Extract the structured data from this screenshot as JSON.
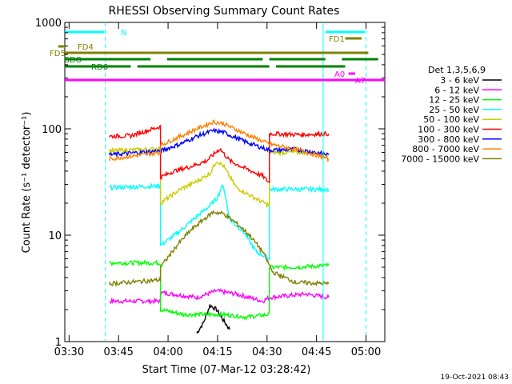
{
  "chart_data": {
    "type": "line",
    "title": "RHESSI Observing Summary Count Rates",
    "xlabel": "Start Time (07-Mar-12 03:28:42)",
    "ylabel": "Count Rate (s⁻¹ detector⁻¹)",
    "y_scale": "log",
    "ylim": [
      1,
      1000
    ],
    "xlim_minutes": [
      0,
      97
    ],
    "x_ticks": [
      {
        "label": "03:30",
        "min": 1.3
      },
      {
        "label": "03:45",
        "min": 16.3
      },
      {
        "label": "04:00",
        "min": 31.3
      },
      {
        "label": "04:15",
        "min": 46.3
      },
      {
        "label": "04:30",
        "min": 61.3
      },
      {
        "label": "04:45",
        "min": 76.3
      },
      {
        "label": "05:00",
        "min": 91.3
      }
    ],
    "y_ticks": [
      {
        "label": "1",
        "v": 1
      },
      {
        "label": "10",
        "v": 10
      },
      {
        "label": "100",
        "v": 100
      },
      {
        "label": "1000",
        "v": 1000
      }
    ],
    "legend_title": "Det 1,3,5,6,9",
    "legend_position": "right",
    "footer_date": "19-Oct-2021 08:43",
    "series": [
      {
        "name": "3 - 6 keV",
        "color": "#000000",
        "points": [
          [
            40,
            1.2
          ],
          [
            42,
            1.5
          ],
          [
            44,
            2.2
          ],
          [
            46,
            2.0
          ],
          [
            48,
            1.6
          ],
          [
            50,
            1.3
          ]
        ]
      },
      {
        "name": "6 - 12 keV",
        "color": "#ff00ff",
        "points": [
          [
            13.5,
            2.4
          ],
          [
            29,
            2.4
          ],
          [
            29,
            2.9
          ],
          [
            40,
            2.6
          ],
          [
            46,
            3.0
          ],
          [
            52,
            2.8
          ],
          [
            60,
            2.4
          ],
          [
            62,
            2.6
          ],
          [
            73,
            2.8
          ],
          [
            80,
            2.6
          ]
        ]
      },
      {
        "name": "12 - 25 keV",
        "color": "#00ff00",
        "points": [
          [
            13.5,
            5.5
          ],
          [
            29,
            5.5
          ],
          [
            29,
            2.0
          ],
          [
            36,
            1.8
          ],
          [
            42,
            1.8
          ],
          [
            48,
            1.8
          ],
          [
            55,
            1.7
          ],
          [
            62,
            1.8
          ],
          [
            62,
            5.0
          ],
          [
            70,
            5.0
          ],
          [
            80,
            5.2
          ]
        ]
      },
      {
        "name": "25 - 50 keV",
        "color": "#00ffff",
        "points": [
          [
            13.5,
            28
          ],
          [
            29,
            29
          ],
          [
            29,
            8
          ],
          [
            35,
            11
          ],
          [
            40,
            15
          ],
          [
            44,
            19
          ],
          [
            46,
            22
          ],
          [
            48,
            30
          ],
          [
            50,
            14
          ],
          [
            54,
            11
          ],
          [
            58,
            7
          ],
          [
            62,
            6
          ],
          [
            62,
            27
          ],
          [
            72,
            27
          ],
          [
            80,
            27
          ]
        ]
      },
      {
        "name": "50 - 100 keV",
        "color": "#cccc00",
        "points": [
          [
            13.5,
            62
          ],
          [
            29,
            65
          ],
          [
            29,
            20
          ],
          [
            35,
            27
          ],
          [
            40,
            32
          ],
          [
            44,
            38
          ],
          [
            46,
            50
          ],
          [
            48,
            45
          ],
          [
            52,
            28
          ],
          [
            58,
            22
          ],
          [
            62,
            19
          ],
          [
            62,
            60
          ],
          [
            72,
            60
          ],
          [
            80,
            58
          ]
        ]
      },
      {
        "name": "100 - 300 keV",
        "color": "#ff0000",
        "points": [
          [
            13.5,
            85
          ],
          [
            20,
            86
          ],
          [
            29,
            105
          ],
          [
            29,
            35
          ],
          [
            33,
            40
          ],
          [
            38,
            44
          ],
          [
            43,
            50
          ],
          [
            47,
            65
          ],
          [
            50,
            50
          ],
          [
            55,
            42
          ],
          [
            60,
            36
          ],
          [
            62,
            31
          ],
          [
            62,
            90
          ],
          [
            72,
            88
          ],
          [
            80,
            90
          ]
        ]
      },
      {
        "name": "300 - 800 keV",
        "color": "#0000ff",
        "points": [
          [
            13.5,
            57
          ],
          [
            29,
            62
          ],
          [
            29,
            62
          ],
          [
            35,
            72
          ],
          [
            40,
            85
          ],
          [
            45,
            96
          ],
          [
            48,
            93
          ],
          [
            52,
            82
          ],
          [
            56,
            73
          ],
          [
            62,
            63
          ],
          [
            70,
            64
          ],
          [
            76,
            60
          ],
          [
            80,
            57
          ]
        ]
      },
      {
        "name": "800 - 7000 keV",
        "color": "#ff8000",
        "points": [
          [
            13.5,
            52
          ],
          [
            29,
            60
          ],
          [
            29,
            70
          ],
          [
            35,
            85
          ],
          [
            40,
            100
          ],
          [
            45,
            116
          ],
          [
            48,
            112
          ],
          [
            52,
            98
          ],
          [
            56,
            86
          ],
          [
            62,
            72
          ],
          [
            70,
            64
          ],
          [
            76,
            57
          ],
          [
            80,
            52
          ]
        ]
      },
      {
        "name": "7000 - 15000 keV",
        "color": "#808000",
        "points": [
          [
            13.5,
            3.5
          ],
          [
            29,
            3.8
          ],
          [
            29,
            5
          ],
          [
            34,
            8
          ],
          [
            38,
            11
          ],
          [
            42,
            14
          ],
          [
            45,
            16.5
          ],
          [
            48,
            16
          ],
          [
            52,
            13
          ],
          [
            56,
            10
          ],
          [
            60,
            7
          ],
          [
            63,
            4.5
          ],
          [
            70,
            3.6
          ],
          [
            80,
            3.5
          ]
        ]
      }
    ],
    "flag_bars": [
      {
        "label": "N",
        "color": "#00ffff",
        "segments": [
          [
            0,
            12
          ],
          [
            79,
            91
          ]
        ]
      },
      {
        "label": "FD4",
        "color": "#808000",
        "segments": [
          [
            -2,
            0
          ]
        ]
      },
      {
        "label": "FD5",
        "color": "#808000",
        "segments": [
          [
            0,
            92
          ]
        ]
      },
      {
        "label": "BDO",
        "color": "#008000",
        "segments": [
          [
            0,
            26
          ],
          [
            31,
            60
          ],
          [
            62,
            79
          ],
          [
            84,
            95
          ]
        ]
      },
      {
        "label": "RD6",
        "color": "#008000",
        "segments": [
          [
            0,
            20
          ],
          [
            22,
            62
          ],
          [
            64,
            85
          ]
        ]
      },
      {
        "label": "FD1",
        "color": "#808000",
        "segments": [
          [
            85,
            90
          ]
        ]
      },
      {
        "label": "A0",
        "color": "#ff00ff",
        "segments": [
          [
            86,
            88
          ]
        ]
      },
      {
        "label": "A7",
        "color": "#ff00ff",
        "segments": [
          [
            0,
            97
          ]
        ]
      }
    ],
    "v_lines": [
      {
        "min": 12.3,
        "color": "#00ffff",
        "style": "dashed"
      },
      {
        "min": 78.3,
        "color": "#00ffff",
        "style": "solid"
      },
      {
        "min": 91.3,
        "color": "#00ffff",
        "style": "dashed"
      }
    ]
  }
}
